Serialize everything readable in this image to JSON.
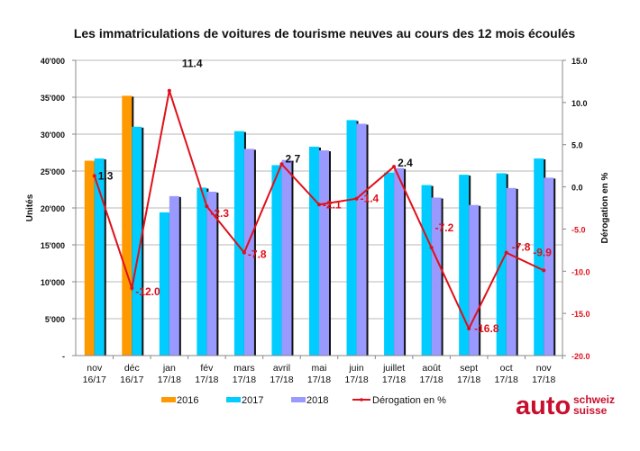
{
  "chart_data": {
    "type": "bar",
    "title": "Les immatriculations de voitures de tourisme neuves au cours des 12 mois écoulés",
    "ylabel": "Unités",
    "y2label": "Dérogation en %",
    "ylim": [
      0,
      40000
    ],
    "y2lim": [
      -20,
      15
    ],
    "yticks": [
      "-",
      "5'000",
      "10'000",
      "15'000",
      "20'000",
      "25'000",
      "30'000",
      "35'000",
      "40'000"
    ],
    "y2ticks": [
      "-20.0",
      "-15.0",
      "-10.0",
      "-5.0",
      "0.0",
      "5.0",
      "10.0",
      "15.0"
    ],
    "grid": true,
    "legend_position": "bottom",
    "categories": [
      [
        "nov",
        "16/17"
      ],
      [
        "déc",
        "16/17"
      ],
      [
        "jan",
        "17/18"
      ],
      [
        "fév",
        "17/18"
      ],
      [
        "mars",
        "17/18"
      ],
      [
        "avril",
        "17/18"
      ],
      [
        "mai",
        "17/18"
      ],
      [
        "juin",
        "17/18"
      ],
      [
        "juillet",
        "17/18"
      ],
      [
        "août",
        "17/18"
      ],
      [
        "sept",
        "17/18"
      ],
      [
        "oct",
        "17/18"
      ],
      [
        "nov",
        "17/18"
      ]
    ],
    "series": [
      {
        "name": "2016",
        "color": "#FF9900",
        "type": "bar",
        "values": [
          26400,
          35200,
          null,
          null,
          null,
          null,
          null,
          null,
          null,
          null,
          null,
          null,
          null
        ]
      },
      {
        "name": "2017",
        "color": "#00CCFF",
        "type": "bar",
        "values": [
          26700,
          31000,
          19400,
          22750,
          30400,
          25800,
          28300,
          31900,
          24800,
          23100,
          24500,
          24700,
          26700
        ]
      },
      {
        "name": "2018",
        "color": "#9999FF",
        "type": "bar",
        "values": [
          null,
          null,
          21600,
          22200,
          28000,
          26500,
          27800,
          31400,
          25400,
          21400,
          20400,
          22700,
          24100
        ]
      },
      {
        "name": "Dérogation en %",
        "color": "#E0101A",
        "type": "line",
        "axis": "right",
        "values": [
          1.3,
          -12.0,
          11.4,
          -2.3,
          -7.8,
          2.7,
          -2.1,
          -1.4,
          2.4,
          -7.2,
          -16.8,
          -7.8,
          -9.9
        ],
        "labels": [
          "1.3",
          "-12.0",
          "11.4",
          "-2.3",
          "-7.8",
          "2.7",
          "-2.1",
          "-1.4",
          "2.4",
          "-7.2",
          "-16.8",
          "-7.8",
          "-9.9"
        ]
      }
    ]
  },
  "logo": {
    "main": "auto",
    "line1": "schweiz",
    "line2": "suisse",
    "color": "#C8102E"
  }
}
